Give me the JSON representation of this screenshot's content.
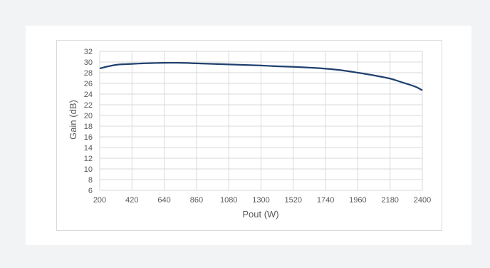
{
  "chart_data": {
    "type": "line",
    "title": "",
    "xlabel": "Pout (W)",
    "ylabel": "Gain (dB)",
    "xlim": [
      200,
      2400
    ],
    "ylim": [
      6,
      32
    ],
    "xticks": [
      200,
      420,
      640,
      860,
      1080,
      1300,
      1520,
      1740,
      1960,
      2180,
      2400
    ],
    "yticks": [
      6,
      8,
      10,
      12,
      14,
      16,
      18,
      20,
      22,
      24,
      26,
      28,
      30,
      32
    ],
    "grid": true,
    "legend": "none",
    "series": [
      {
        "color": "#1f3f6e",
        "x": [
          200,
          260,
          320,
          380,
          420,
          500,
          560,
          640,
          750,
          860,
          970,
          1080,
          1190,
          1300,
          1410,
          1520,
          1630,
          1740,
          1850,
          1960,
          2070,
          2180,
          2250,
          2320,
          2360,
          2400
        ],
        "y": [
          28.8,
          29.2,
          29.5,
          29.6,
          29.65,
          29.75,
          29.8,
          29.85,
          29.85,
          29.75,
          29.65,
          29.55,
          29.45,
          29.35,
          29.2,
          29.1,
          28.95,
          28.75,
          28.45,
          28.0,
          27.5,
          26.9,
          26.3,
          25.7,
          25.3,
          24.7
        ]
      }
    ]
  }
}
